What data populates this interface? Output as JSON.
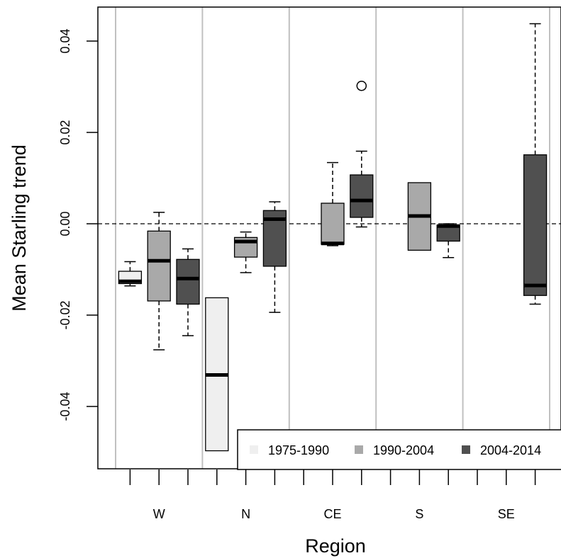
{
  "chart_data": {
    "type": "box",
    "title": "",
    "xlabel": "Region",
    "ylabel": "Mean Starling trend",
    "ylim": [
      -0.0535,
      0.047
    ],
    "y_ticks": [
      -0.04,
      -0.02,
      0.0,
      0.02,
      0.04
    ],
    "y_tick_labels": [
      "-0.04",
      "-0.02",
      "0.00",
      "0.02",
      "0.04"
    ],
    "categories": [
      "W",
      "N",
      "CE",
      "S",
      "SE"
    ],
    "reference_line": 0.0,
    "legend_position": "bottom-right",
    "series": [
      {
        "name": "1975-1990",
        "color": "#efefef",
        "boxes": [
          {
            "region": "W",
            "lower_whisker": -0.0136,
            "q1": -0.0131,
            "median": -0.0126,
            "q3": -0.0104,
            "upper_whisker": -0.0083,
            "outliers": []
          },
          {
            "region": "N",
            "lower_whisker": null,
            "q1": -0.0497,
            "median": -0.0331,
            "q3": -0.0162,
            "upper_whisker": null,
            "outliers": []
          }
        ]
      },
      {
        "name": "1990-2004",
        "color": "#a9a9a9",
        "boxes": [
          {
            "region": "W",
            "lower_whisker": -0.0276,
            "q1": -0.0169,
            "median": -0.0081,
            "q3": -0.0016,
            "upper_whisker": 0.0025,
            "outliers": []
          },
          {
            "region": "N",
            "lower_whisker": -0.0107,
            "q1": -0.0073,
            "median": -0.0039,
            "q3": -0.003,
            "upper_whisker": -0.0018,
            "outliers": []
          },
          {
            "region": "CE",
            "lower_whisker": -0.0048,
            "q1": -0.0045,
            "median": -0.0043,
            "q3": 0.0045,
            "upper_whisker": 0.0134,
            "outliers": []
          },
          {
            "region": "S",
            "lower_whisker": null,
            "q1": -0.0058,
            "median": 0.0017,
            "q3": 0.009,
            "upper_whisker": null,
            "outliers": []
          }
        ]
      },
      {
        "name": "2004-2014",
        "color": "#505050",
        "boxes": [
          {
            "region": "W",
            "lower_whisker": -0.0245,
            "q1": -0.0176,
            "median": -0.012,
            "q3": -0.0078,
            "upper_whisker": -0.0055,
            "outliers": []
          },
          {
            "region": "N",
            "lower_whisker": -0.0194,
            "q1": -0.0093,
            "median": 0.001,
            "q3": 0.0029,
            "upper_whisker": 0.0048,
            "outliers": []
          },
          {
            "region": "CE",
            "lower_whisker": -0.0007,
            "q1": 0.0014,
            "median": 0.0051,
            "q3": 0.0107,
            "upper_whisker": 0.0159,
            "outliers": [
              0.0302
            ]
          },
          {
            "region": "S",
            "lower_whisker": -0.0074,
            "q1": -0.0038,
            "median": -0.0005,
            "q3": -0.0003,
            "upper_whisker": 0.0,
            "outliers": []
          },
          {
            "region": "SE",
            "lower_whisker": -0.0176,
            "q1": -0.0157,
            "median": -0.0135,
            "q3": 0.0151,
            "upper_whisker": 0.0438,
            "outliers": []
          }
        ]
      }
    ]
  }
}
